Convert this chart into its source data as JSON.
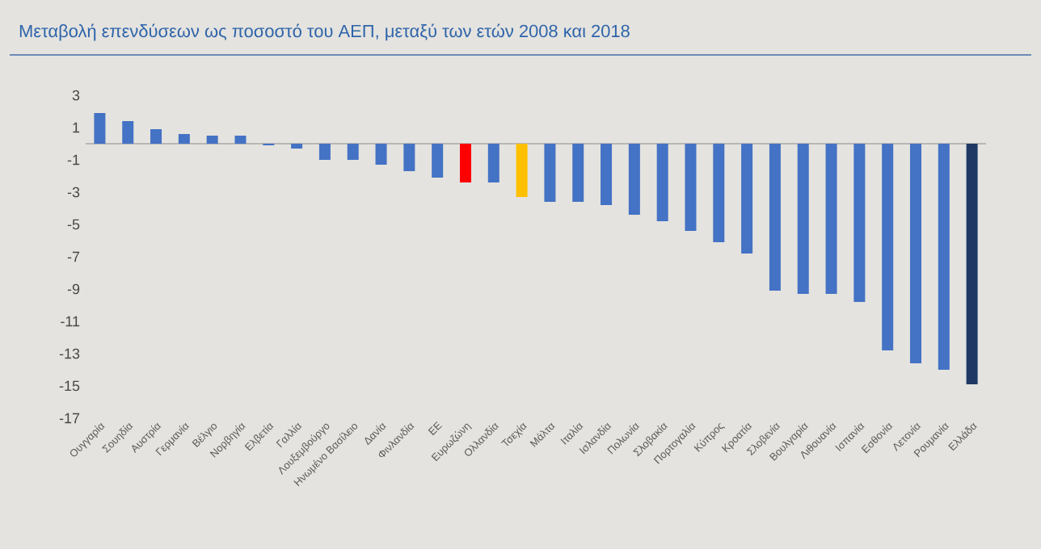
{
  "chart_data": {
    "type": "bar",
    "title": "Μεταβολή επενδύσεων ως ποσοστό του ΑΕΠ, μεταξύ των ετών 2008 και 2018",
    "categories": [
      "Ουγγαρία",
      "Σουηδία",
      "Αυστρία",
      "Γερμανία",
      "Βέλγιο",
      "Νορβηγία",
      "Ελβετία",
      "Γαλλία",
      "Λουξεμβούργο",
      "Ηνωμένο Βασίλειο",
      "Δανία",
      "Φινλανδία",
      "ΕΕ",
      "Ευρωζώνη",
      "Ολλανδία",
      "Τσεχία",
      "Μάλτα",
      "Ιταλία",
      "Ισλανδία",
      "Πολωνία",
      "Σλοβακία",
      "Πορτογαλία",
      "Κύπρος",
      "Κροατία",
      "Σλοβενία",
      "Βουλγαρία",
      "Λιθουανία",
      "Ισπανία",
      "Εσθονία",
      "Λετονία",
      "Ρουμανία",
      "Ελλάδα"
    ],
    "values": [
      1.9,
      1.4,
      0.9,
      0.6,
      0.5,
      0.5,
      -0.1,
      -0.3,
      -1.0,
      -1.0,
      -1.3,
      -1.7,
      -2.1,
      -2.4,
      -2.4,
      -3.3,
      -3.6,
      -3.6,
      -3.8,
      -4.4,
      -4.8,
      -5.4,
      -6.1,
      -6.8,
      -9.1,
      -9.3,
      -9.3,
      -9.8,
      -12.8,
      -13.6,
      -14.0,
      -14.9
    ],
    "colors": [
      "#4472c4",
      "#4472c4",
      "#4472c4",
      "#4472c4",
      "#4472c4",
      "#4472c4",
      "#4472c4",
      "#4472c4",
      "#4472c4",
      "#4472c4",
      "#4472c4",
      "#4472c4",
      "#4472c4",
      "#ff0000",
      "#4472c4",
      "#ffc000",
      "#4472c4",
      "#4472c4",
      "#4472c4",
      "#4472c4",
      "#4472c4",
      "#4472c4",
      "#4472c4",
      "#4472c4",
      "#4472c4",
      "#4472c4",
      "#4472c4",
      "#4472c4",
      "#4472c4",
      "#4472c4",
      "#4472c4",
      "#203864"
    ],
    "ylim": [
      -17,
      3
    ],
    "yticks": [
      3,
      1,
      -1,
      -3,
      -5,
      -7,
      -9,
      -11,
      -13,
      -15,
      -17
    ]
  }
}
